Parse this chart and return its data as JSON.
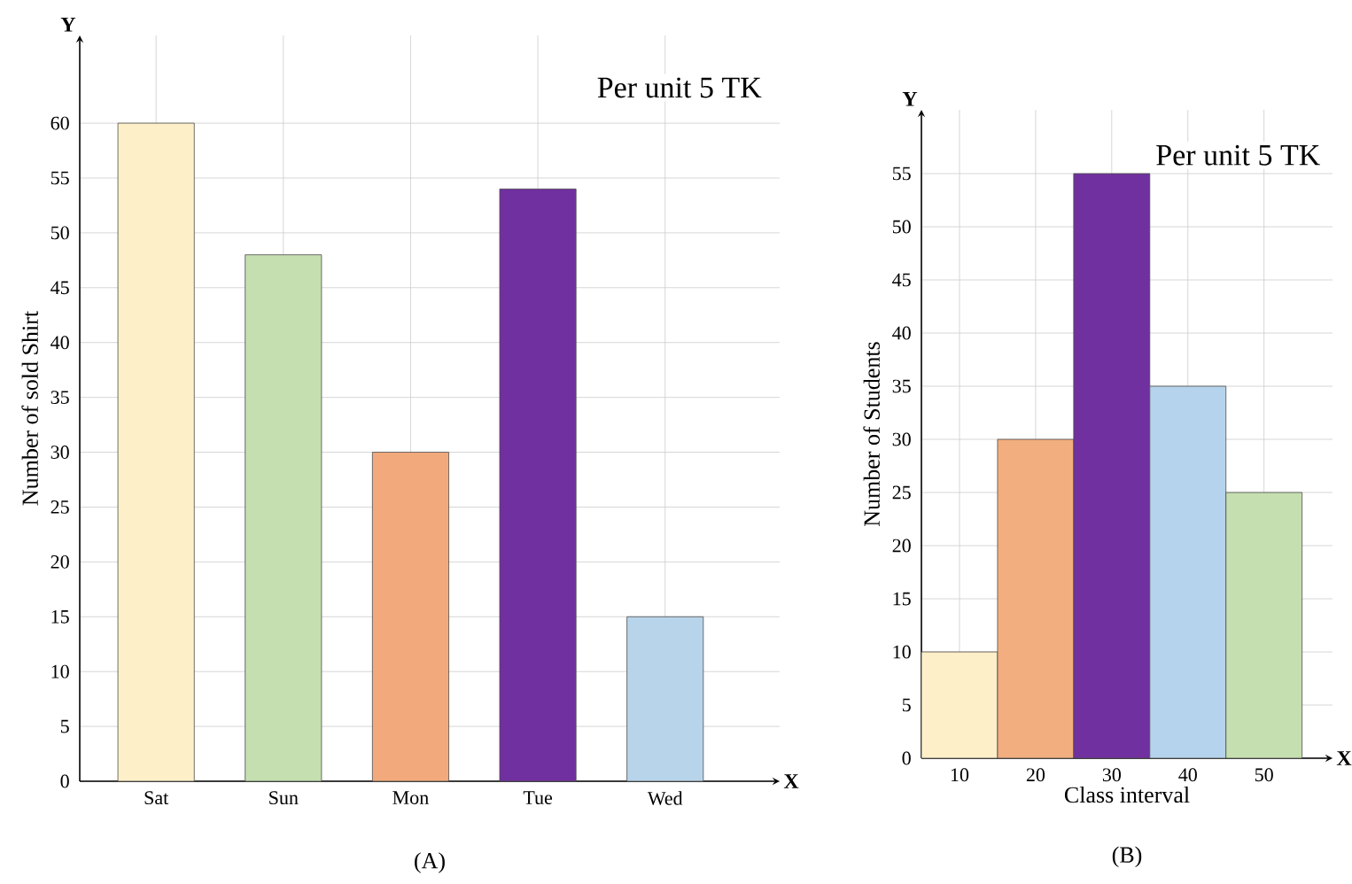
{
  "chart_data": [
    {
      "type": "bar",
      "ylabel": "Number of sold Shirt",
      "categories": [
        "Sat",
        "Sun",
        "Mon",
        "Tue",
        "Wed"
      ],
      "values": [
        60,
        48,
        30,
        54,
        15
      ],
      "colors": [
        "#fdf0c8",
        "#c5dfb0",
        "#f2aa7c",
        "#7030a0",
        "#b8d4ea"
      ],
      "ylim": [
        0,
        68
      ],
      "yticks": [
        0,
        5,
        10,
        15,
        20,
        25,
        30,
        35,
        40,
        45,
        50,
        55,
        60
      ],
      "grid": true,
      "annotations": [
        "Per unit 5 TK",
        "Y",
        "X",
        "(A)"
      ]
    },
    {
      "type": "histogram",
      "xlabel": "Class interval",
      "ylabel": "Number of Students",
      "bins": [
        5,
        15,
        25,
        35,
        45,
        55
      ],
      "values": [
        10,
        30,
        55,
        35,
        25
      ],
      "colors": [
        "#fdefc8",
        "#f2ae7e",
        "#7030a0",
        "#b5d3ec",
        "#c5dfb0"
      ],
      "xlim": [
        5,
        59
      ],
      "xticks": [
        10,
        20,
        30,
        40,
        50
      ],
      "ylim": [
        0,
        61
      ],
      "yticks": [
        0,
        5,
        10,
        15,
        20,
        25,
        30,
        35,
        40,
        45,
        50,
        55
      ],
      "grid": true,
      "annotations": [
        "Per unit 5 TK",
        "Y",
        "X",
        "(B)"
      ]
    }
  ]
}
